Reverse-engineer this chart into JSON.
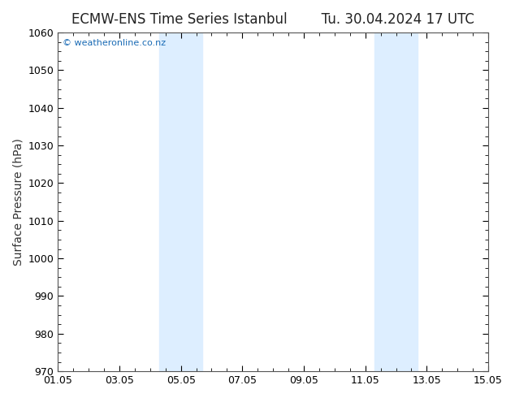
{
  "title_left": "ECMW-ENS Time Series Istanbul",
  "title_right": "Tu. 30.04.2024 17 UTC",
  "ylabel": "Surface Pressure (hPa)",
  "ylim": [
    970,
    1060
  ],
  "yticks": [
    970,
    980,
    990,
    1000,
    1010,
    1020,
    1030,
    1040,
    1050,
    1060
  ],
  "xtick_labels": [
    "01.05",
    "03.05",
    "05.05",
    "07.05",
    "09.05",
    "11.05",
    "13.05",
    "15.05"
  ],
  "xtick_positions": [
    0,
    2,
    4,
    6,
    8,
    10,
    12,
    14
  ],
  "xlim": [
    0,
    14
  ],
  "shaded_regions": [
    {
      "x_start": 3.3,
      "x_end": 4.7,
      "color": "#ddeeff"
    },
    {
      "x_start": 10.3,
      "x_end": 11.7,
      "color": "#ddeeff"
    }
  ],
  "watermark_text": "© weatheronline.co.nz",
  "watermark_color": "#1a6bb5",
  "background_color": "#ffffff",
  "plot_bg_color": "#ffffff",
  "spine_color": "#555555",
  "title_fontsize": 12,
  "tick_fontsize": 9,
  "ylabel_fontsize": 10
}
